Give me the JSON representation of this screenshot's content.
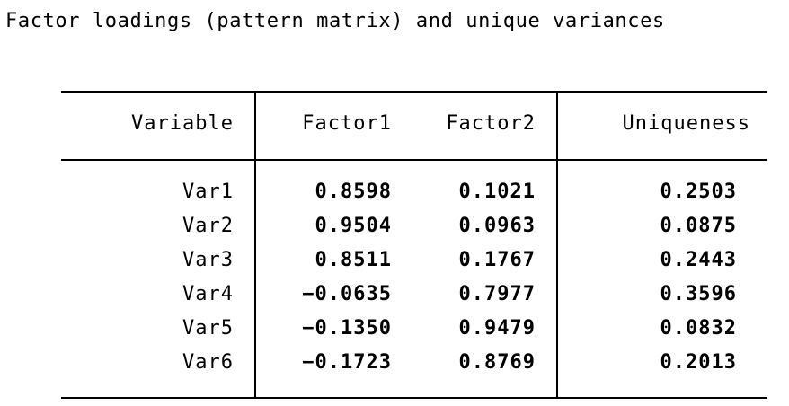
{
  "title": "Factor loadings (pattern matrix) and unique variances",
  "table": {
    "headers": [
      "Variable",
      "Factor1",
      "Factor2",
      "Uniqueness"
    ],
    "rows": [
      {
        "variable": "Var1",
        "factor1": "0.8598",
        "factor2": "0.1021",
        "uniqueness": "0.2503"
      },
      {
        "variable": "Var2",
        "factor1": "0.9504",
        "factor2": "0.0963",
        "uniqueness": "0.0875"
      },
      {
        "variable": "Var3",
        "factor1": "0.8511",
        "factor2": "0.1767",
        "uniqueness": "0.2443"
      },
      {
        "variable": "Var4",
        "factor1": "-0.0635",
        "factor2": "0.7977",
        "uniqueness": "0.3596"
      },
      {
        "variable": "Var5",
        "factor1": "-0.1350",
        "factor2": "0.9479",
        "uniqueness": "0.0832"
      },
      {
        "variable": "Var6",
        "factor1": "-0.1723",
        "factor2": "0.8769",
        "uniqueness": "0.2013"
      }
    ]
  }
}
